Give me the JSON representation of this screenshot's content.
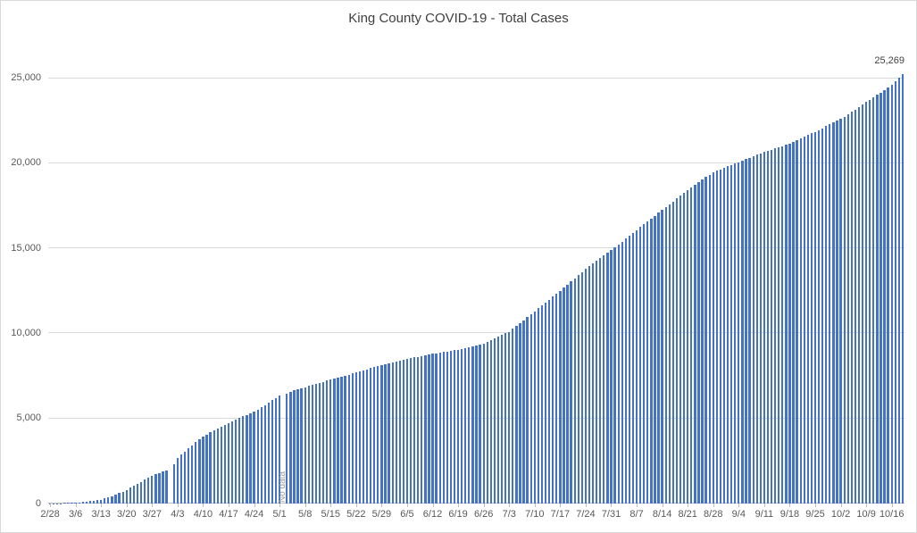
{
  "chart_data": {
    "type": "bar",
    "title": "King County COVID-19 - Total Cases",
    "xlabel": "",
    "ylabel": "",
    "ylim": [
      0,
      25000
    ],
    "grid": true,
    "legend": false,
    "yticks": [
      0,
      5000,
      10000,
      15000,
      20000,
      25000
    ],
    "ytick_labels": [
      "0",
      "5,000",
      "10,000",
      "15,000",
      "20,000",
      "25,000"
    ],
    "x_tick_labels": [
      "2/28",
      "3/6",
      "3/13",
      "3/20",
      "3/27",
      "4/3",
      "4/10",
      "4/17",
      "4/24",
      "5/1",
      "5/8",
      "5/15",
      "5/22",
      "5/29",
      "6/5",
      "6/12",
      "6/19",
      "6/26",
      "7/3",
      "7/10",
      "7/17",
      "7/24",
      "7/31",
      "8/7",
      "8/14",
      "8/21",
      "8/28",
      "9/4",
      "9/11",
      "9/18",
      "9/25",
      "10/2",
      "10/9",
      "10/16"
    ],
    "label_every": 7,
    "values": [
      7,
      14,
      21,
      27,
      34,
      42,
      51,
      60,
      78,
      96,
      115,
      138,
      162,
      190,
      220,
      290,
      365,
      445,
      528,
      615,
      705,
      800,
      920,
      1040,
      1165,
      1285,
      1410,
      1530,
      1650,
      1725,
      1800,
      1875,
      1950,
      null,
      2300,
      2700,
      2880,
      3060,
      3240,
      3420,
      3600,
      3780,
      3950,
      4065,
      4180,
      4295,
      4410,
      4525,
      4640,
      4750,
      4845,
      4940,
      5035,
      5125,
      5220,
      5310,
      5400,
      5535,
      5670,
      5800,
      5935,
      6070,
      6200,
      6340,
      null,
      6460,
      6560,
      6660,
      6720,
      6790,
      6850,
      6915,
      6980,
      7040,
      7100,
      7160,
      7220,
      7280,
      7340,
      7400,
      7460,
      7520,
      7580,
      7640,
      7700,
      7765,
      7830,
      7890,
      7955,
      8020,
      8085,
      8150,
      8200,
      8250,
      8300,
      8350,
      8400,
      8450,
      8500,
      8545,
      8590,
      8630,
      8675,
      8715,
      8760,
      8800,
      8835,
      8870,
      8910,
      8945,
      8980,
      9015,
      9050,
      9100,
      9150,
      9200,
      9250,
      9300,
      9350,
      9400,
      9500,
      9600,
      9700,
      9800,
      9900,
      10000,
      10100,
      10270,
      10440,
      10615,
      10785,
      10955,
      11130,
      11300,
      11470,
      11640,
      11815,
      11985,
      12155,
      12330,
      12500,
      12685,
      12870,
      13060,
      13245,
      13430,
      13620,
      13800,
      13955,
      14115,
      14270,
      14430,
      14585,
      14745,
      14900,
      15070,
      15240,
      15405,
      15575,
      15740,
      15910,
      16080,
      16250,
      16420,
      16585,
      16755,
      16920,
      17090,
      17260,
      17430,
      17600,
      17765,
      17935,
      18100,
      18270,
      18440,
      18590,
      18740,
      18890,
      19040,
      19190,
      19340,
      19490,
      19575,
      19655,
      19740,
      19820,
      19905,
      19985,
      20070,
      20155,
      20240,
      20330,
      20415,
      20500,
      20585,
      20670,
      20740,
      20810,
      20880,
      20945,
      21015,
      21085,
      21150,
      21250,
      21350,
      21455,
      21555,
      21655,
      21760,
      21860,
      21965,
      22070,
      22180,
      22285,
      22390,
      22495,
      22600,
      22745,
      22890,
      23030,
      23170,
      23315,
      23460,
      23600,
      23745,
      23890,
      24030,
      24170,
      24315,
      24460,
      24600,
      24850,
      25050,
      25269
    ],
    "missing_indices": [
      33,
      64
    ],
    "no_data": {
      "label": "No data",
      "index": 64
    },
    "last_value_label": "25,269",
    "last_value_index": 234,
    "colors": {
      "bar": "#4472C4",
      "gridline": "#D9D9D9",
      "axis_line": "#BFBFBF",
      "axis_text": "#595959",
      "title_text": "#404040",
      "no_data_text": "#9B9B9B"
    }
  }
}
